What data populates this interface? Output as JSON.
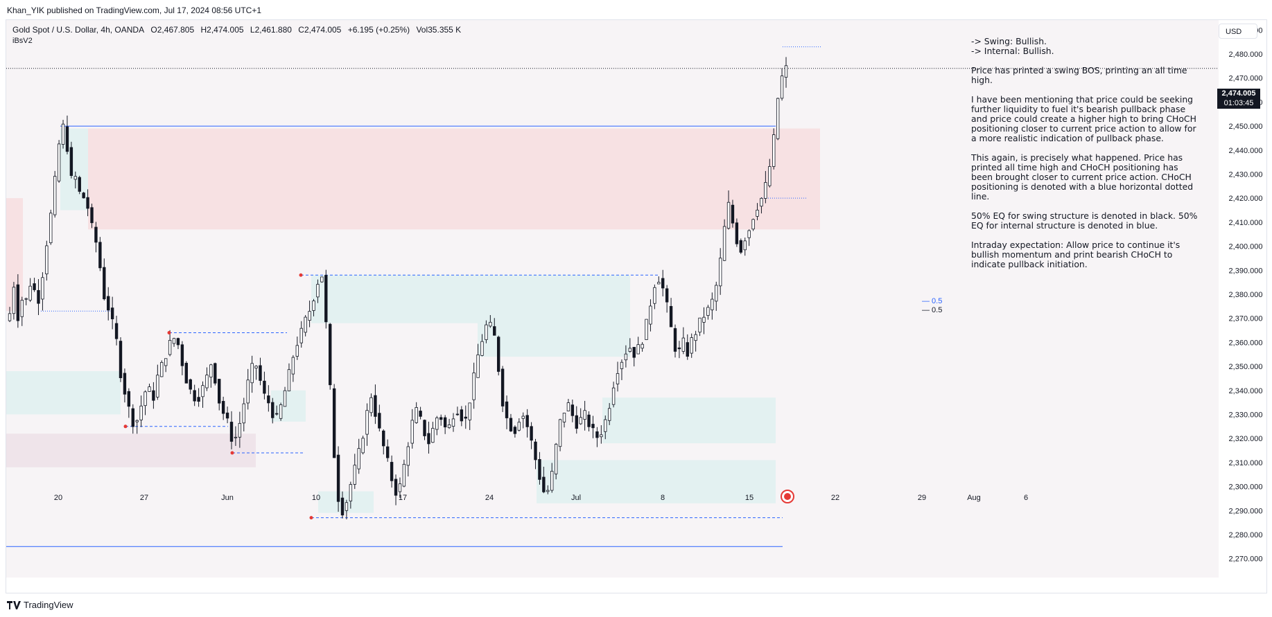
{
  "published_by": "Khan_YIK published on TradingView.com, Jul 17, 2024 08:56 UTC+1",
  "header": {
    "symbol": "Gold Spot / U.S. Dollar, 4h, OANDA",
    "open": "O2,467.805",
    "high": "H2,474.005",
    "low": "L2,461.880",
    "close": "C2,474.005",
    "change": "+6.195 (+0.25%)",
    "volume": "Vol35.355 K",
    "indicator": "iBsV2"
  },
  "currency_button": "USD",
  "last_price": {
    "value": "2,474.005",
    "countdown": "01:03:45"
  },
  "notes": [
    "-> Swing:  Bullish.",
    "-> Internal:  Bullish.",
    "Price has printed a swing BOS, printing an all time high.",
    "I have been mentioning that price could be seeking further liquidity to fuel it's bearish pullback phase and price could create a higher high to bring CHoCH positioning closer to current price action to allow for a more realistic indication of pullback phase.",
    "This again, is precisely what happened. Price has printed all time high and CHoCH positioning has been brought closer to current price action.  CHoCH positioning is denoted with a blue horizontal dotted line.",
    "50% EQ for swing structure is denoted in black.  50% EQ for internal structure is denoted in blue.",
    "Intraday expectation: Allow price to continue it's bullish momentum and print bearish CHoCH to indicate pullback initiation."
  ],
  "eq_labels": {
    "internal": "— 0.5",
    "swing": "— 0.5"
  },
  "footer_brand": "TradingView",
  "colors": {
    "up": "#ffffff",
    "down": "#131722",
    "blue": "#2962ff",
    "zone_red": "#f7e1e3",
    "zone_teal": "#e3f1f1"
  },
  "chart_data": {
    "type": "candlestick",
    "title": "Gold Spot / U.S. Dollar, 4h, OANDA",
    "ylim": [
      2265,
      2497
    ],
    "y_ticks": [
      "2,490.000",
      "2,480.000",
      "2,470.000",
      "2,460.000",
      "2,450.000",
      "2,440.000",
      "2,430.000",
      "2,420.000",
      "2,410.000",
      "2,400.000",
      "2,390.000",
      "2,380.000",
      "2,370.000",
      "2,360.000",
      "2,350.000",
      "2,340.000",
      "2,330.000",
      "2,320.000",
      "2,310.000",
      "2,300.000",
      "2,290.000",
      "2,280.000",
      "2,270.000"
    ],
    "x_ticks": [
      "20",
      "27",
      "Jun",
      "10",
      "17",
      "24",
      "Jul",
      "8",
      "15",
      "22",
      "29",
      "Aug",
      "6"
    ],
    "grid": false,
    "swing_high": 2450,
    "internal_high": 2388,
    "choch_level": 2420,
    "ath": 2483,
    "waypoints": [
      [
        2372,
        2385,
        2368,
        2381,
        2376,
        2390,
        2374,
        2383,
        2398,
        2410,
        2425,
        2442,
        2450,
        2440,
        2425,
        2430,
        2418,
        2422,
        2410,
        2405,
        2395,
        2380,
        2375,
        2368,
        2360,
        2345,
        2338,
        2330,
        2325,
        2330,
        2338,
        2342,
        2335,
        2345,
        2350,
        2355,
        2360,
        2362,
        2358,
        2348,
        2342,
        2338,
        2336,
        2340,
        2344,
        2352,
        2345,
        2335,
        2330,
        2326,
        2318,
        2322,
        2330,
        2340,
        2348,
        2352,
        2345,
        2338,
        2335,
        2330,
        2328,
        2335,
        2342,
        2350,
        2358,
        2362,
        2368,
        2372,
        2378,
        2385,
        2388,
        2365,
        2335,
        2305,
        2290
      ],
      [
        2290,
        2298,
        2305,
        2312,
        2320,
        2330,
        2338,
        2330,
        2322,
        2315,
        2308,
        2300,
        2296,
        2305,
        2315,
        2325,
        2332,
        2328,
        2322,
        2318,
        2325,
        2330,
        2328,
        2322,
        2328,
        2333,
        2330,
        2326,
        2335,
        2345,
        2355,
        2362,
        2368,
        2366,
        2360,
        2340,
        2330,
        2326,
        2322,
        2328,
        2330,
        2325,
        2318,
        2310,
        2302,
        2296,
        2300,
        2310,
        2325,
        2330,
        2335,
        2330,
        2326,
        2328,
        2330,
        2325,
        2322,
        2320,
        2325,
        2330,
        2340,
        2348,
        2352,
        2356,
        2358,
        2355,
        2358,
        2362,
        2370,
        2380,
        2388,
        2385,
        2378,
        2368,
        2358,
        2356,
        2360,
        2355,
        2362,
        2365,
        2370,
        2372,
        2375,
        2380,
        2390,
        2405,
        2418,
        2410,
        2402,
        2398,
        2405,
        2408,
        2415,
        2418,
        2422,
        2430,
        2440,
        2460,
        2470,
        2474
      ]
    ]
  }
}
